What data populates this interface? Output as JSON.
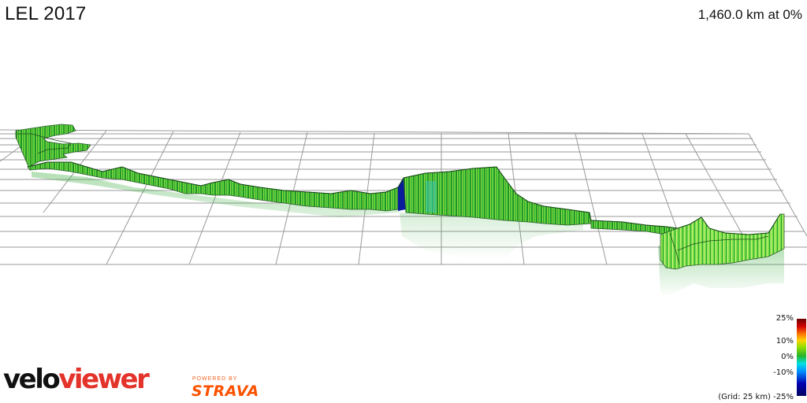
{
  "header": {
    "title": "LEL 2017",
    "readout": "1,460.0 km at 0%"
  },
  "legend": {
    "ticks": [
      "25%",
      "10%",
      "0%",
      "-10%",
      "-25%"
    ],
    "grid_note": "(Grid: 25 km)",
    "colors": {
      "max": "#6b0000",
      "mid_high": "#ffd200",
      "zero": "#27b42a",
      "mid_low": "#00e0e0",
      "min": "#000060"
    }
  },
  "brand": {
    "logo_part1": "velo",
    "logo_part2": "viewer",
    "powered_by": "POWERED BY",
    "strava": "STRAVA",
    "colors": {
      "velo": "#111111",
      "viewer": "#e3332a",
      "strava": "#fc5200"
    }
  },
  "colors": {
    "grid": "#9a9a9a",
    "route_main": "#2aa52f",
    "route_light": "#7ee04a",
    "route_steep_down": "#0a1e9c",
    "route_teal": "#3fc7b4"
  }
}
